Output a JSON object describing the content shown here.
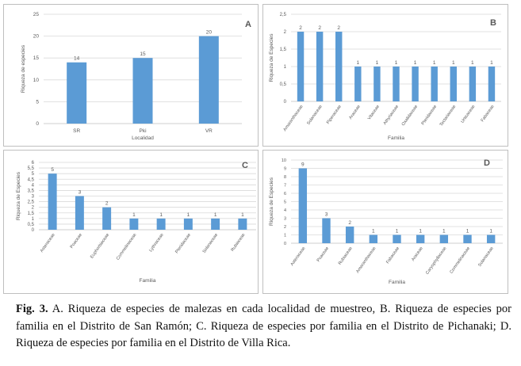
{
  "caption": {
    "label": "Fig. 3.",
    "text": " A. Riqueza de especies de malezas en cada localidad de muestreo, B. Riqueza de especies por familia en el Distrito de San Ramón; C. Riqueza de especies por familia en el Distrito de Pichanaki; D. Riqueza de especies por familia en el Distrito de Villa Rica."
  },
  "colors": {
    "bar": "#5b9bd5",
    "grid": "#d9d9d9",
    "axis_text": "#595959",
    "border": "#bfbfbf"
  },
  "chart_data": [
    {
      "panel_label": "A",
      "type": "bar",
      "categories": [
        "SR",
        "Pki",
        "VR"
      ],
      "values": [
        14,
        15,
        20
      ],
      "xlabel": "Localidad",
      "ylabel": "Riqueza de especies",
      "ylim": [
        0,
        25
      ],
      "yticks": [
        0,
        5,
        10,
        15,
        20,
        25
      ],
      "grid": true
    },
    {
      "panel_label": "B",
      "type": "bar",
      "categories": [
        "Amaranthaceae",
        "Solanaceae",
        "Piperaceae",
        "Araceae",
        "Vitaceae",
        "Athyriaceae",
        "Oxalidaceae",
        "Pteridaceae",
        "Tectariaceae",
        "Urticaceae",
        "Fabaceae"
      ],
      "values": [
        2,
        2,
        2,
        1,
        1,
        1,
        1,
        1,
        1,
        1,
        1
      ],
      "xlabel": "Familia",
      "ylabel": "Riqueza de Especies",
      "ylim": [
        0,
        2.5
      ],
      "yticks": [
        0,
        0.5,
        1,
        1.5,
        2,
        2.5
      ],
      "grid": true
    },
    {
      "panel_label": "C",
      "type": "bar",
      "categories": [
        "Asteraceae",
        "Poaceae",
        "Euphorbiaceae",
        "Commelinaceae",
        "Lythraceae",
        "Pteridaceae",
        "Solanaceae",
        "Rubiaceae"
      ],
      "values": [
        5,
        3,
        2,
        1,
        1,
        1,
        1,
        1
      ],
      "xlabel": "Familia",
      "ylabel": "Riqueza de Especies",
      "ylim": [
        0,
        6
      ],
      "yticks": [
        0,
        0.5,
        1,
        1.5,
        2,
        2.5,
        3,
        3.5,
        4,
        4.5,
        5,
        5.5,
        6
      ],
      "grid": true
    },
    {
      "panel_label": "D",
      "type": "bar",
      "categories": [
        "Asteraceae",
        "Poaceae",
        "Rubiaceae",
        "Amaranthaceae",
        "Fabaceae",
        "Araceae",
        "Caryophyllaceae",
        "Commelinaceae",
        "Solanaceae"
      ],
      "values": [
        9,
        3,
        2,
        1,
        1,
        1,
        1,
        1,
        1
      ],
      "xlabel": "Familia",
      "ylabel": "Riqueza de Especies",
      "ylim": [
        0,
        10
      ],
      "yticks": [
        0,
        1,
        2,
        3,
        4,
        5,
        6,
        7,
        8,
        9,
        10
      ],
      "grid": true
    }
  ]
}
